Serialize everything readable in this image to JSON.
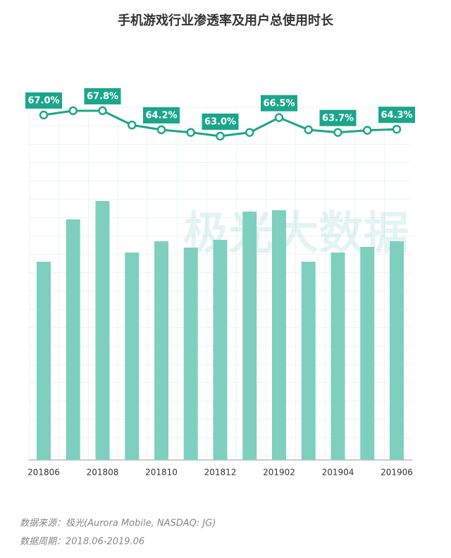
{
  "chart_data": {
    "type": "bar-line",
    "title": "手机游戏行业渗透率及用户总使用时长",
    "categories": [
      "201806",
      null,
      "201808",
      null,
      "201810",
      null,
      "201812",
      null,
      "201902",
      null,
      "201904",
      null,
      "201906"
    ],
    "series": [
      {
        "type": "bar",
        "color": "#7fcfbf",
        "values": [
          281,
          341,
          367,
          294,
          310,
          301,
          312,
          352,
          354,
          281,
          294,
          302,
          310
        ]
      },
      {
        "type": "line",
        "color": "#1ba68b",
        "values": [
          67.0,
          67.8,
          67.8,
          65.1,
          64.2,
          63.7,
          63.0,
          63.7,
          66.5,
          64.2,
          63.7,
          64.1,
          64.3
        ],
        "value_labels": [
          "67.0%",
          null,
          "67.8%",
          null,
          "64.2%",
          null,
          "63.0%",
          null,
          "66.5%",
          null,
          "63.7%",
          null,
          "64.3%"
        ]
      }
    ],
    "watermark": "极光大数据",
    "notes": [
      "数据来源：极光(Aurora Mobile, NASDAQ: JG)",
      "数据周期：2018.06-2019.06"
    ]
  }
}
